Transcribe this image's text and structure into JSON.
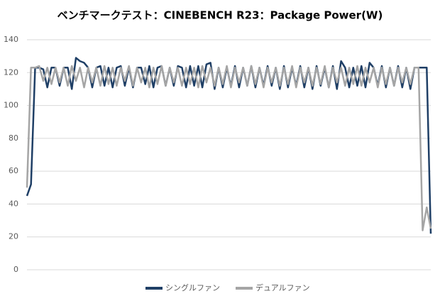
{
  "chart_data": {
    "type": "line",
    "title": "ベンチマークテスト：CINEBENCH R23：Package Power(W)",
    "series": [
      {
        "name": "シングルファン",
        "color": "#1f3f66",
        "values": [
          45,
          52,
          123,
          123,
          122,
          111,
          123,
          123,
          112,
          123,
          123,
          110,
          129,
          127,
          126,
          123,
          111,
          123,
          124,
          112,
          123,
          111,
          123,
          124,
          112,
          123,
          111,
          123,
          123,
          113,
          124,
          111,
          123,
          124,
          112,
          123,
          112,
          124,
          123,
          111,
          124,
          112,
          124,
          111,
          125,
          126,
          110,
          123,
          111,
          123,
          112,
          124,
          111,
          123,
          112,
          124,
          111,
          123,
          112,
          124,
          112,
          123,
          110,
          124,
          111,
          123,
          112,
          124,
          111,
          123,
          110,
          124,
          112,
          123,
          111,
          124,
          110,
          127,
          123,
          111,
          123,
          112,
          124,
          111,
          126,
          123,
          112,
          124,
          111,
          123,
          112,
          124,
          111,
          123,
          110,
          123,
          123,
          123,
          123,
          22
        ]
      },
      {
        "name": "デュアルファン",
        "color": "#a5a5a5",
        "values": [
          50,
          123,
          123,
          124,
          115,
          123,
          113,
          123,
          114,
          123,
          112,
          124,
          115,
          123,
          111,
          123,
          114,
          123,
          112,
          124,
          113,
          123,
          112,
          123,
          115,
          124,
          112,
          123,
          114,
          123,
          111,
          123,
          113,
          124,
          112,
          123,
          114,
          123,
          112,
          123,
          113,
          123,
          111,
          124,
          114,
          123,
          112,
          123,
          113,
          124,
          111,
          123,
          114,
          123,
          112,
          124,
          113,
          123,
          111,
          123,
          114,
          123,
          112,
          123,
          113,
          124,
          111,
          123,
          114,
          123,
          112,
          123,
          113,
          124,
          111,
          123,
          114,
          123,
          112,
          123,
          113,
          124,
          112,
          123,
          114,
          123,
          111,
          123,
          113,
          123,
          112,
          123,
          114,
          123,
          113,
          123,
          123,
          24,
          38,
          25
        ]
      }
    ],
    "ylim": [
      0,
      140
    ],
    "yticks": [
      0,
      20,
      40,
      60,
      80,
      100,
      120,
      140
    ],
    "grid": true,
    "legend": "bottom"
  }
}
